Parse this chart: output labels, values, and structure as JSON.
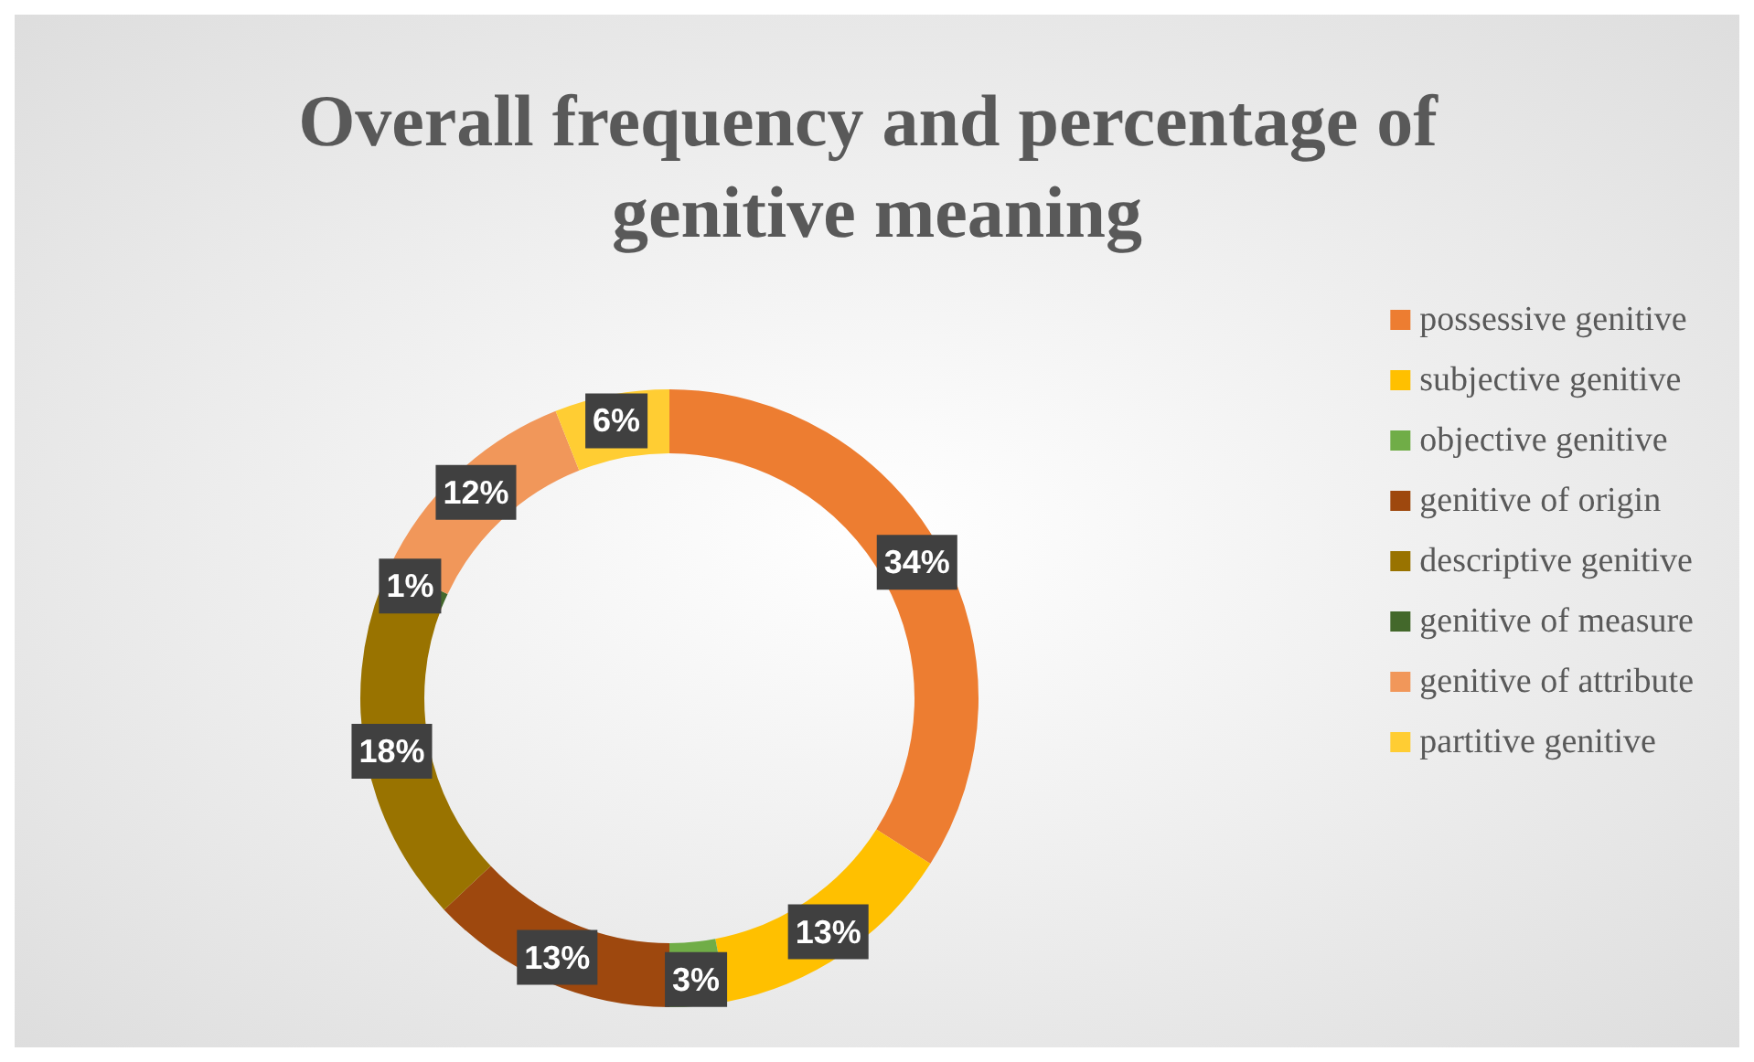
{
  "chart_data": {
    "type": "donut",
    "title": "Overall frequency and percentage of genitive meaning",
    "categories": [
      "possessive genitive",
      "subjective genitive",
      "objective genitive",
      "genitive of origin",
      "descriptive genitive",
      "genitive of measure",
      "genitive of attribute",
      "partitive genitive"
    ],
    "values": [
      34,
      13,
      3,
      13,
      18,
      1,
      12,
      6
    ],
    "value_labels": [
      "34%",
      "13%",
      "3%",
      "13%",
      "18%",
      "1%",
      "12%",
      "6%"
    ],
    "colors": [
      "#ed7d31",
      "#ffc000",
      "#70ad47",
      "#9e480e",
      "#997300",
      "#43682b",
      "#f1975a",
      "#ffcd33"
    ],
    "legend": "right"
  }
}
